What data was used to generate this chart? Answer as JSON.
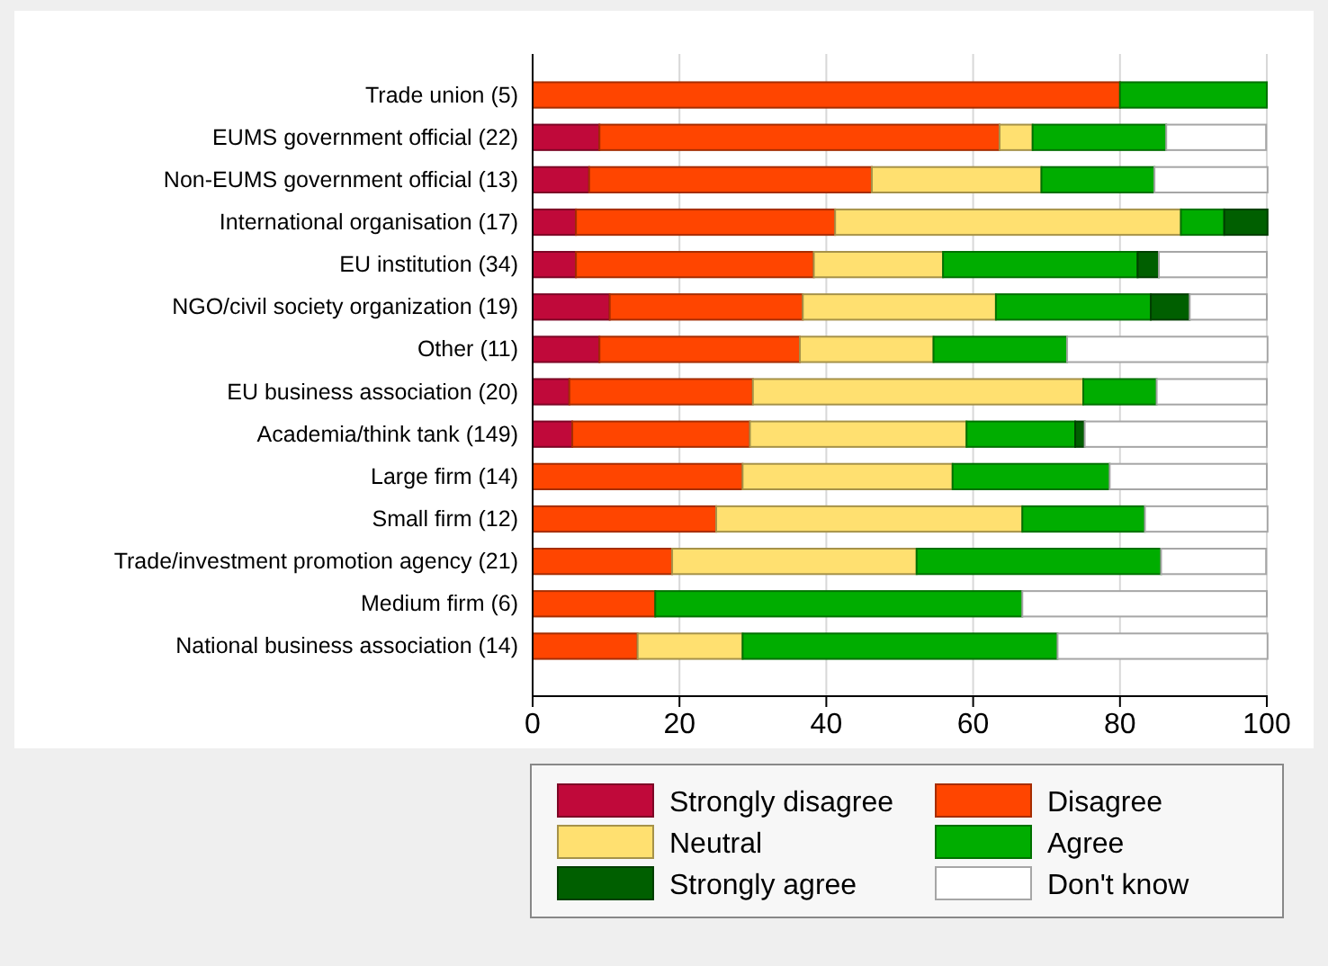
{
  "chart_data": {
    "type": "bar",
    "orientation": "horizontal",
    "stacked": true,
    "grid": "x",
    "legend": "bottom",
    "categories": [
      "Trade union (5)",
      "EUMS government official (22)",
      "Non-EUMS government official (13)",
      "International organisation (17)",
      "EU institution (34)",
      "NGO/civil society organization (19)",
      "Other (11)",
      "EU business association (20)",
      "Academia/think tank (149)",
      "Large firm (14)",
      "Small firm (12)",
      "Trade/investment promotion agency (21)",
      "Medium firm (6)",
      "National business association (14)"
    ],
    "xlim": [
      0,
      100
    ],
    "xticks": [
      0,
      20,
      40,
      60,
      80,
      100
    ],
    "series": [
      {
        "name": "Strongly disagree",
        "color": "#c0093a",
        "values": [
          0,
          9.1,
          7.7,
          5.9,
          5.9,
          10.5,
          9.1,
          5,
          5.4,
          0,
          0,
          0,
          0,
          0
        ]
      },
      {
        "name": "Disagree",
        "color": "#ff4500",
        "values": [
          80,
          54.5,
          38.5,
          35.3,
          32.4,
          26.3,
          27.3,
          25,
          24.2,
          28.6,
          25,
          19,
          16.7,
          14.3
        ]
      },
      {
        "name": "Neutral",
        "color": "#ffe070",
        "values": [
          0,
          4.5,
          23.1,
          47.1,
          17.6,
          26.3,
          18.2,
          45,
          29.5,
          28.6,
          41.7,
          33.3,
          0,
          14.3
        ]
      },
      {
        "name": "Agree",
        "color": "#00ad00",
        "values": [
          20,
          18.2,
          15.4,
          5.9,
          26.5,
          21.1,
          18.2,
          10,
          14.8,
          21.4,
          16.7,
          33.3,
          50,
          42.9
        ]
      },
      {
        "name": "Strongly agree",
        "color": "#005f00",
        "values": [
          0,
          0,
          0,
          5.9,
          2.9,
          5.3,
          0,
          0,
          1.3,
          0,
          0,
          0,
          0,
          0
        ]
      },
      {
        "name": "Don't know",
        "color": "#ffffff",
        "values": [
          0,
          13.6,
          15.4,
          0,
          14.7,
          10.5,
          27.3,
          15,
          24.8,
          21.4,
          16.7,
          14.3,
          33.3,
          28.6
        ]
      }
    ]
  }
}
